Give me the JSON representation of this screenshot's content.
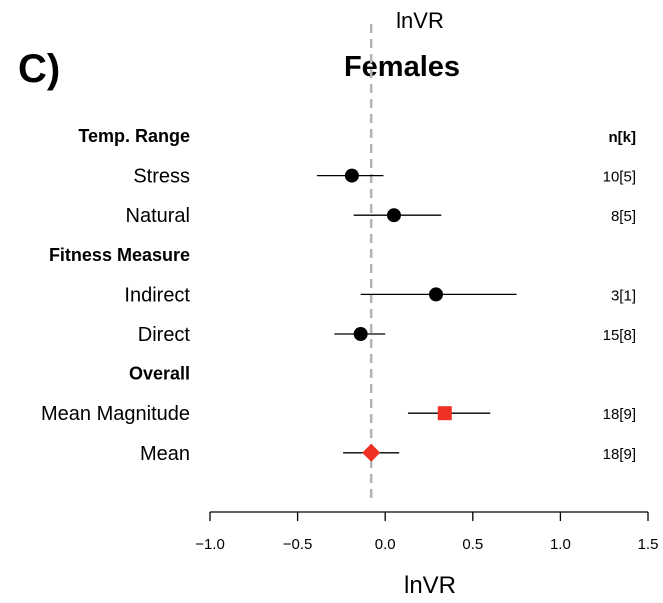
{
  "chart_data": {
    "type": "forest",
    "panel_label": "C)",
    "top_label": "lnVR",
    "title": "Females",
    "xlabel": "lnVR",
    "xlim": [
      -1.0,
      1.5
    ],
    "xticks": [
      "−1.0",
      "−0.5",
      "0.0",
      "0.5",
      "1.0",
      "1.5"
    ],
    "xtick_values": [
      -1.0,
      -0.5,
      0.0,
      0.5,
      1.0,
      1.5
    ],
    "reference_line": -0.08,
    "nk_header": "n[k]",
    "rows": [
      {
        "label": "Temp. Range",
        "group": true
      },
      {
        "label": "Stress",
        "est": -0.19,
        "lo": -0.39,
        "hi": -0.01,
        "nk": "10[5]",
        "marker": "circle",
        "color": "#000000"
      },
      {
        "label": "Natural",
        "est": 0.05,
        "lo": -0.18,
        "hi": 0.32,
        "nk": "8[5]",
        "marker": "circle",
        "color": "#000000"
      },
      {
        "label": "Fitness Measure",
        "group": true
      },
      {
        "label": "Indirect",
        "est": 0.29,
        "lo": -0.14,
        "hi": 0.75,
        "nk": "3[1]",
        "marker": "circle",
        "color": "#000000"
      },
      {
        "label": "Direct",
        "est": -0.14,
        "lo": -0.29,
        "hi": 0.0,
        "nk": "15[8]",
        "marker": "circle",
        "color": "#000000"
      },
      {
        "label": "Overall",
        "group": true
      },
      {
        "label": "Mean Magnitude",
        "est": 0.34,
        "lo": 0.13,
        "hi": 0.6,
        "nk": "18[9]",
        "marker": "square",
        "color": "#ee3124"
      },
      {
        "label": "Mean",
        "est": -0.08,
        "lo": -0.24,
        "hi": 0.08,
        "nk": "18[9]",
        "marker": "diamond",
        "color": "#ee3124"
      }
    ]
  }
}
